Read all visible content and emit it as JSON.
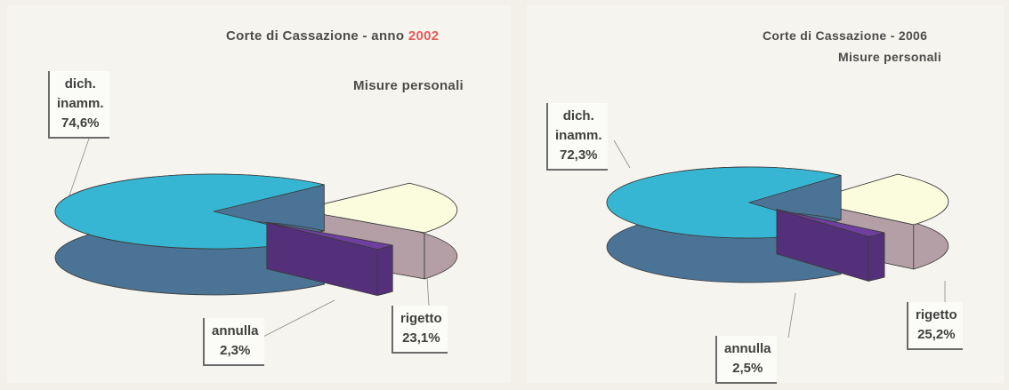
{
  "colors": {
    "dich_top": "#36b6d2",
    "dich_side": "#4a7395",
    "rigetto_top": "#fbfbde",
    "rigetto_side": "#b59fa7",
    "annulla_top": "#6f3f9f",
    "annulla_side": "#54307a"
  },
  "chart_data": [
    {
      "type": "pie",
      "title": "Corte di Cassazione - anno",
      "title_year": "2002",
      "subtitle": "Misure personali",
      "categories": [
        "dich. inamm.",
        "rigetto",
        "annulla"
      ],
      "values": [
        74.6,
        23.1,
        2.3
      ],
      "labels": [
        {
          "lines": [
            "dich.",
            "inamm.",
            "74,6%"
          ]
        },
        {
          "lines": [
            "rigetto",
            "23,1%"
          ]
        },
        {
          "lines": [
            "annulla",
            "2,3%"
          ]
        }
      ]
    },
    {
      "type": "pie",
      "title": "Corte di Cassazione - 2006",
      "subtitle": "Misure personali",
      "categories": [
        "dich. inamm.",
        "rigetto",
        "annulla"
      ],
      "values": [
        72.3,
        25.2,
        2.5
      ],
      "labels": [
        {
          "lines": [
            "dich.",
            "inamm.",
            "72,3%"
          ]
        },
        {
          "lines": [
            "rigetto",
            "25,2%"
          ]
        },
        {
          "lines": [
            "annulla",
            "2,5%"
          ]
        }
      ]
    }
  ]
}
